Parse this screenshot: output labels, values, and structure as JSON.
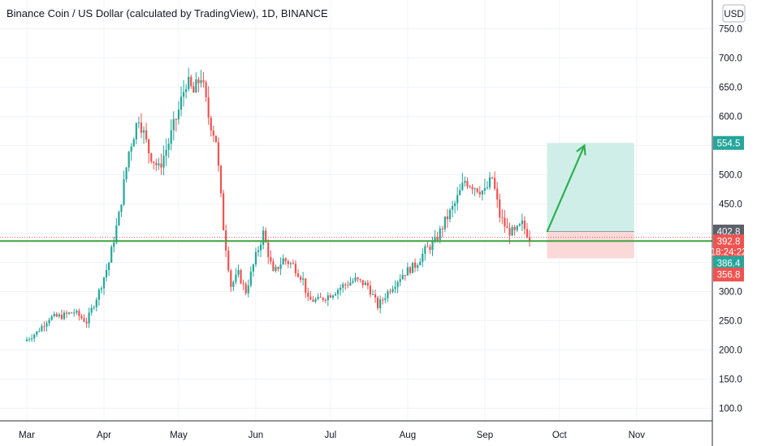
{
  "chart_data": {
    "type": "candlestick",
    "title": "Binance Coin / US Dollar (calculated by TradingView), 1D, BINANCE",
    "currency_button": "USD",
    "ylim": [
      65,
      775
    ],
    "y_ticks": [
      "750.0",
      "700.0",
      "650.0",
      "600.0",
      "550.0",
      "500.0",
      "450.0",
      "400.0",
      "350.0",
      "300.0",
      "250.0",
      "200.0",
      "150.0",
      "100.0"
    ],
    "x_ticks": [
      "Mar",
      "Apr",
      "May",
      "Jun",
      "Jul",
      "Aug",
      "Sep",
      "Oct",
      "Nov"
    ],
    "grid": true,
    "colors": {
      "up": "#26a69a",
      "down": "#ef5350",
      "support": "#3fa33f",
      "arrow": "#2eae4e",
      "profit_zone": "#cfeee8",
      "loss_zone": "#fbd9d9"
    },
    "price_series": [
      {
        "date": "2021-02-28",
        "close": 215
      },
      {
        "date": "2021-03-05",
        "close": 230
      },
      {
        "date": "2021-03-10",
        "close": 255
      },
      {
        "date": "2021-03-15",
        "close": 258
      },
      {
        "date": "2021-03-20",
        "close": 265
      },
      {
        "date": "2021-03-25",
        "close": 248
      },
      {
        "date": "2021-03-30",
        "close": 300
      },
      {
        "date": "2021-04-03",
        "close": 350
      },
      {
        "date": "2021-04-07",
        "close": 430
      },
      {
        "date": "2021-04-11",
        "close": 540
      },
      {
        "date": "2021-04-15",
        "close": 600
      },
      {
        "date": "2021-04-19",
        "close": 540
      },
      {
        "date": "2021-04-23",
        "close": 510
      },
      {
        "date": "2021-04-27",
        "close": 555
      },
      {
        "date": "2021-05-01",
        "close": 610
      },
      {
        "date": "2021-05-04",
        "close": 660
      },
      {
        "date": "2021-05-07",
        "close": 640
      },
      {
        "date": "2021-05-10",
        "close": 670
      },
      {
        "date": "2021-05-13",
        "close": 600
      },
      {
        "date": "2021-05-16",
        "close": 560
      },
      {
        "date": "2021-05-19",
        "close": 410
      },
      {
        "date": "2021-05-22",
        "close": 310
      },
      {
        "date": "2021-05-25",
        "close": 330
      },
      {
        "date": "2021-05-28",
        "close": 300
      },
      {
        "date": "2021-06-01",
        "close": 360
      },
      {
        "date": "2021-06-04",
        "close": 400
      },
      {
        "date": "2021-06-08",
        "close": 330
      },
      {
        "date": "2021-06-12",
        "close": 355
      },
      {
        "date": "2021-06-16",
        "close": 345
      },
      {
        "date": "2021-06-20",
        "close": 320
      },
      {
        "date": "2021-06-22",
        "close": 285
      },
      {
        "date": "2021-06-26",
        "close": 285
      },
      {
        "date": "2021-07-01",
        "close": 295
      },
      {
        "date": "2021-07-06",
        "close": 310
      },
      {
        "date": "2021-07-11",
        "close": 320
      },
      {
        "date": "2021-07-16",
        "close": 310
      },
      {
        "date": "2021-07-20",
        "close": 275
      },
      {
        "date": "2021-07-25",
        "close": 305
      },
      {
        "date": "2021-07-30",
        "close": 330
      },
      {
        "date": "2021-08-04",
        "close": 345
      },
      {
        "date": "2021-08-08",
        "close": 370
      },
      {
        "date": "2021-08-12",
        "close": 385
      },
      {
        "date": "2021-08-16",
        "close": 420
      },
      {
        "date": "2021-08-20",
        "close": 450
      },
      {
        "date": "2021-08-24",
        "close": 490
      },
      {
        "date": "2021-08-28",
        "close": 480
      },
      {
        "date": "2021-09-01",
        "close": 470
      },
      {
        "date": "2021-09-04",
        "close": 495
      },
      {
        "date": "2021-09-07",
        "close": 430
      },
      {
        "date": "2021-09-10",
        "close": 405
      },
      {
        "date": "2021-09-13",
        "close": 400
      },
      {
        "date": "2021-09-16",
        "close": 415
      },
      {
        "date": "2021-09-19",
        "close": 392.8
      }
    ],
    "support_level": 386.4,
    "long_position": {
      "start": "2021-09-26",
      "end": "2021-10-31",
      "entry": 402.8,
      "target": 554.5,
      "stop": 356.8
    },
    "arrow": {
      "from_date": "2021-09-26",
      "from_price": 402,
      "to_date": "2021-10-11",
      "to_price": 550
    },
    "price_tags": [
      {
        "label": "554.5",
        "price": 554.5,
        "color": "#26a69a",
        "text_color": "#ffffff"
      },
      {
        "label": "402.8",
        "price": 402.8,
        "color": "#5d606b",
        "text_color": "#ffffff"
      },
      {
        "label": "392.8",
        "price": 392.8,
        "color": "#ef5350",
        "text_color": "#ffffff",
        "sub": "18:24:22"
      },
      {
        "label": "386.4",
        "price": 386.4,
        "color": "#26a69a",
        "text_color": "#ffffff"
      },
      {
        "label": "356.8",
        "price": 356.8,
        "color": "#ef5350",
        "text_color": "#ffffff"
      }
    ]
  }
}
